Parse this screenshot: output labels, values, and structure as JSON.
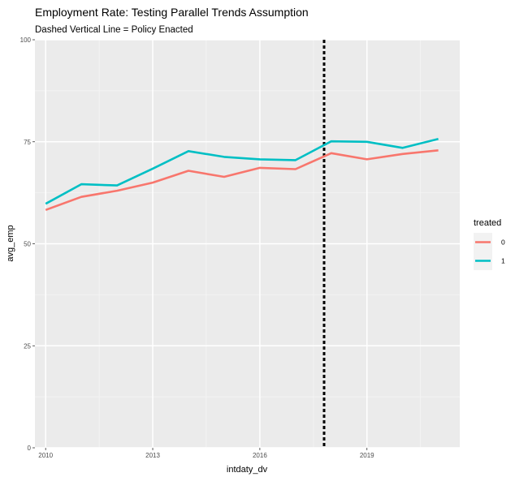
{
  "chart_data": {
    "type": "line",
    "title": "Employment Rate: Testing Parallel Trends Assumption",
    "subtitle": "Dashed Vertical Line = Policy Enacted",
    "xlabel": "intdaty_dv",
    "ylabel": "avg_emp",
    "xlim": [
      2009.7,
      2021.6
    ],
    "ylim": [
      0,
      100
    ],
    "x_ticks": [
      2010,
      2013,
      2016,
      2019
    ],
    "y_ticks": [
      0,
      25,
      50,
      75,
      100
    ],
    "grid": true,
    "legend": {
      "title": "treated",
      "placement": "right"
    },
    "vline": {
      "x": 2017.8,
      "style": "dashed",
      "color": "#000000"
    },
    "x": [
      2010,
      2011,
      2012,
      2013,
      2014,
      2015,
      2016,
      2017,
      2018,
      2019,
      2020,
      2021
    ],
    "series": [
      {
        "name": "0",
        "color": "#F8766D",
        "values": [
          58.3,
          61.5,
          63.0,
          65.0,
          67.9,
          66.4,
          68.6,
          68.3,
          72.2,
          70.7,
          72.0,
          72.9
        ]
      },
      {
        "name": "1",
        "color": "#00BFC4",
        "values": [
          59.8,
          64.6,
          64.3,
          68.4,
          72.7,
          71.3,
          70.7,
          70.5,
          75.1,
          75.0,
          73.5,
          75.7
        ]
      }
    ]
  }
}
